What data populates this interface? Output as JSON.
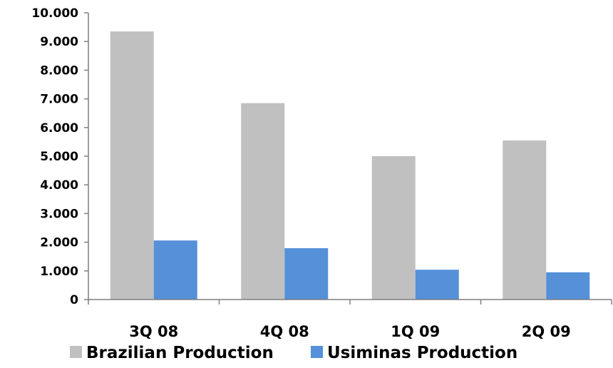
{
  "chart_data": {
    "type": "bar",
    "categories": [
      "3Q 08",
      "4Q 08",
      "1Q 09",
      "2Q 09"
    ],
    "series": [
      {
        "name": "Brazilian Production",
        "color": "#c0c0c0",
        "values": [
          9350,
          6850,
          5000,
          5550
        ]
      },
      {
        "name": "Usiminas Production",
        "color": "#5590d8",
        "values": [
          2060,
          1790,
          1040,
          950
        ]
      }
    ],
    "ylim": [
      0,
      10000
    ],
    "yticks": [
      0,
      1000,
      2000,
      3000,
      4000,
      5000,
      6000,
      7000,
      8000,
      9000,
      10000
    ],
    "ytick_labels": [
      "0",
      "1.000",
      "2.000",
      "3.000",
      "4.000",
      "5.000",
      "6.000",
      "7.000",
      "8.000",
      "9.000",
      "10.000"
    ],
    "grid": false,
    "legend": "bottom"
  }
}
